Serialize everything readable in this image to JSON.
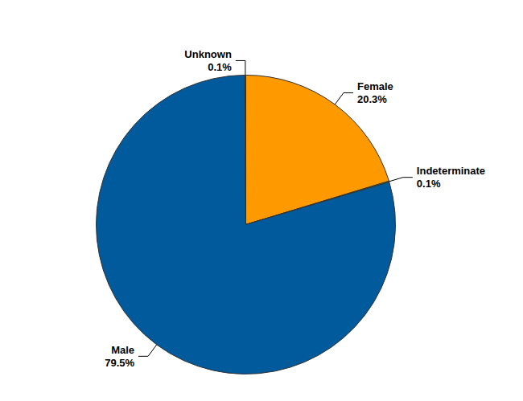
{
  "chart_data": {
    "type": "pie",
    "categories": [
      "Female",
      "Indeterminate",
      "Male",
      "Unknown"
    ],
    "values": [
      20.3,
      0.1,
      79.5,
      0.1
    ],
    "value_labels": [
      "20.3%",
      "0.1%",
      "79.5%",
      "0.1%"
    ],
    "colors": [
      "#ff9900",
      "#7fba00",
      "#005a9c",
      "#a0a0a0"
    ],
    "data_labels": true
  }
}
